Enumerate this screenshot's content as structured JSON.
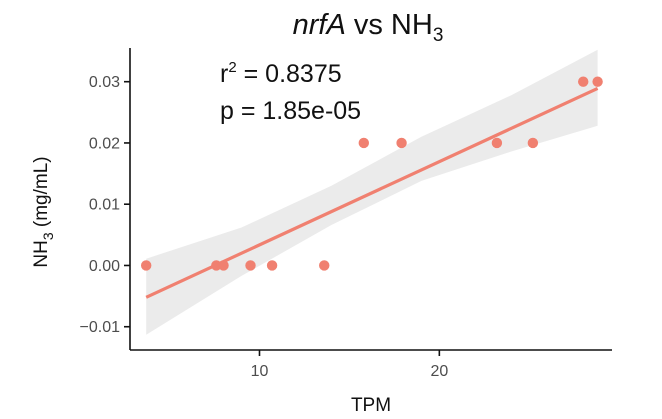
{
  "chart_data": {
    "type": "scatter",
    "title": {
      "gene": "nrfA",
      "joiner": " vs ",
      "target": "NH",
      "target_subscript": "3"
    },
    "annotations": {
      "r2_prefix": "r",
      "r2_superscript": "2",
      "r2_value": " = 0.8375",
      "p_text": "p = 1.85e-05"
    },
    "xlabel": "TPM",
    "ylabel": {
      "main": "NH",
      "subscript": "3",
      "rest": " (mg/mL)"
    },
    "xlim": [
      2.8,
      29.6
    ],
    "ylim": [
      -0.0138,
      0.0355
    ],
    "x_ticks": [
      10,
      20
    ],
    "x_tick_labels": [
      "10",
      "20"
    ],
    "y_ticks": [
      -0.01,
      0,
      0.01,
      0.02,
      0.03
    ],
    "y_tick_labels": [
      "−0.01",
      "0.00",
      "0.01",
      "0.02",
      "0.03"
    ],
    "grid": false,
    "series": [
      {
        "points": [
          {
            "x": 3.7,
            "y": 0.0
          },
          {
            "x": 7.6,
            "y": 0.0
          },
          {
            "x": 8.0,
            "y": 0.0
          },
          {
            "x": 9.5,
            "y": 0.0
          },
          {
            "x": 10.7,
            "y": 0.0
          },
          {
            "x": 13.6,
            "y": 0.0
          },
          {
            "x": 15.8,
            "y": 0.02
          },
          {
            "x": 17.9,
            "y": 0.02
          },
          {
            "x": 23.2,
            "y": 0.02
          },
          {
            "x": 25.2,
            "y": 0.02
          },
          {
            "x": 28.0,
            "y": 0.03
          },
          {
            "x": 28.8,
            "y": 0.03
          }
        ],
        "color": "#f08070"
      }
    ],
    "regression": {
      "x": [
        3.7,
        28.8
      ],
      "y": [
        -0.0052,
        0.0289
      ],
      "color": "#f08070"
    },
    "confidence_band": {
      "x": [
        3.7,
        9.0,
        14.0,
        19.0,
        24.0,
        28.8
      ],
      "lower": [
        -0.0113,
        -0.0017,
        0.0066,
        0.0138,
        0.0186,
        0.0228
      ],
      "upper": [
        0.0011,
        0.0062,
        0.013,
        0.021,
        0.0278,
        0.0352
      ],
      "color": "#ebebeb"
    }
  }
}
